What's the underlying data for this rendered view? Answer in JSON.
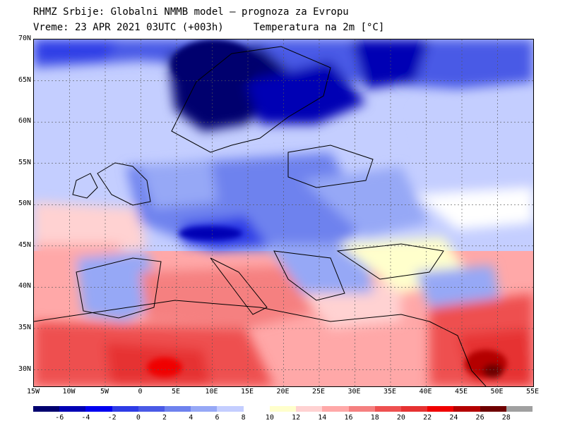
{
  "header": {
    "line1": "RHMZ Srbije: Globalni NMMB model — prognoza za Evropu",
    "line2": "Vreme: 23 APR 2021 03UTC (+003h)     Temperatura na 2m [°C]"
  },
  "map": {
    "lat_labels": [
      "70N",
      "65N",
      "60N",
      "55N",
      "50N",
      "45N",
      "40N",
      "35N",
      "30N"
    ],
    "lat_values": [
      70,
      65,
      60,
      55,
      50,
      45,
      40,
      35,
      30
    ],
    "lon_labels": [
      "15W",
      "10W",
      "5W",
      "0",
      "5E",
      "10E",
      "15E",
      "20E",
      "25E",
      "30E",
      "35E",
      "40E",
      "45E",
      "50E",
      "55E"
    ],
    "lon_values": [
      -15,
      -10,
      -5,
      0,
      5,
      10,
      15,
      20,
      25,
      30,
      35,
      40,
      45,
      50,
      55
    ],
    "lat_range": [
      28,
      70
    ],
    "lon_range": [
      -15,
      55
    ],
    "gridlines": "dotted"
  },
  "colorbar": {
    "labels": [
      "-6",
      "-4",
      "-2",
      "0",
      "2",
      "4",
      "6",
      "8",
      "10",
      "12",
      "14",
      "16",
      "18",
      "20",
      "22",
      "24",
      "26",
      "28"
    ],
    "colors": [
      "#00006e",
      "#0000b4",
      "#0000f0",
      "#2e3ce6",
      "#4a5ae6",
      "#6e82ee",
      "#96a8f6",
      "#c4ceff",
      "#ffffff",
      "#ffffcc",
      "#ffd2d2",
      "#ffa8a8",
      "#f58080",
      "#ee5050",
      "#e63232",
      "#f00000",
      "#b40000",
      "#6e0000",
      "#a0a0a0"
    ]
  }
}
